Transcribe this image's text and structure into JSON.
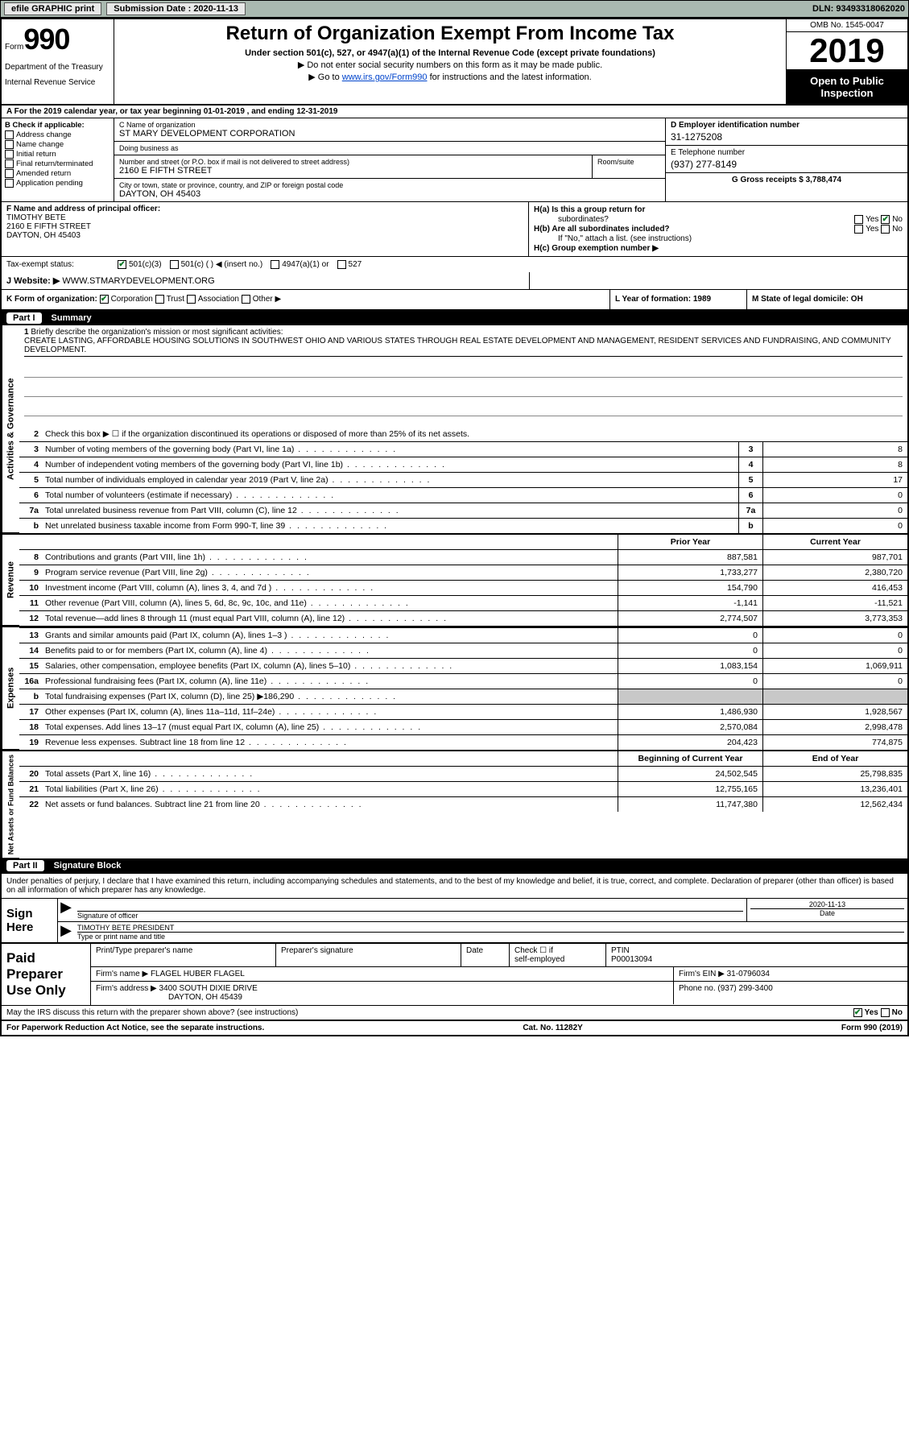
{
  "toolbar": {
    "efile_label": "efile GRAPHIC print",
    "sub_date_label": "Submission Date : 2020-11-13",
    "dln": "DLN: 93493318062020"
  },
  "header": {
    "form_prefix": "Form",
    "form_no": "990",
    "dept1": "Department of the Treasury",
    "dept2": "Internal Revenue Service",
    "title": "Return of Organization Exempt From Income Tax",
    "subtitle": "Under section 501(c), 527, or 4947(a)(1) of the Internal Revenue Code (except private foundations)",
    "note1": "Do not enter social security numbers on this form as it may be made public.",
    "note2_pre": "Go to ",
    "note2_link": "www.irs.gov/Form990",
    "note2_post": " for instructions and the latest information.",
    "omb": "OMB No. 1545-0047",
    "year": "2019",
    "inspect1": "Open to Public",
    "inspect2": "Inspection"
  },
  "row_a": "A  For the 2019 calendar year, or tax year beginning 01-01-2019     , and ending 12-31-2019",
  "col_b": {
    "hdr": "B Check if applicable:",
    "items": [
      "Address change",
      "Name change",
      "Initial return",
      "Final return/terminated",
      "Amended return",
      "Application pending"
    ]
  },
  "col_c": {
    "name_lbl": "C Name of organization",
    "name_val": "ST MARY DEVELOPMENT CORPORATION",
    "dba_lbl": "Doing business as",
    "dba_val": "",
    "addr_lbl": "Number and street (or P.O. box if mail is not delivered to street address)",
    "addr_val": "2160 E FIFTH STREET",
    "room_lbl": "Room/suite",
    "city_lbl": "City or town, state or province, country, and ZIP or foreign postal code",
    "city_val": "DAYTON, OH  45403"
  },
  "col_d": {
    "d_lbl": "D Employer identification number",
    "d_val": "31-1275208",
    "e_lbl": "E Telephone number",
    "e_val": "(937) 277-8149",
    "g_lbl": "G Gross receipts $ 3,788,474"
  },
  "col_f": {
    "lbl": "F  Name and address of principal officer:",
    "l1": "TIMOTHY BETE",
    "l2": "2160 E FIFTH STREET",
    "l3": "DAYTON, OH  45403"
  },
  "col_h": {
    "ha": "H(a)  Is this a group return for",
    "ha2": "subordinates?",
    "hb": "H(b)  Are all subordinates included?",
    "hb2": "If \"No,\" attach a list. (see instructions)",
    "hc": "H(c)  Group exemption number ▶",
    "yes": "Yes",
    "no": "No"
  },
  "tax_status": {
    "lbl": "Tax-exempt status:",
    "o1": "501(c)(3)",
    "o2": "501(c) (  ) ◀ (insert no.)",
    "o3": "4947(a)(1) or",
    "o4": "527"
  },
  "row_j": {
    "lbl": "J  Website: ▶",
    "val": "WWW.STMARYDEVELOPMENT.ORG"
  },
  "row_k": {
    "lbl": "K Form of organization:",
    "o1": "Corporation",
    "o2": "Trust",
    "o3": "Association",
    "o4": "Other ▶"
  },
  "row_l": {
    "lbl": "L Year of formation: 1989"
  },
  "row_m": {
    "lbl": "M State of legal domicile: OH"
  },
  "part1": {
    "num": "Part I",
    "title": "Summary"
  },
  "brief": {
    "num": "1",
    "lbl": "Briefly describe the organization's mission or most significant activities:",
    "txt": "CREATE LASTING, AFFORDABLE HOUSING SOLUTIONS IN SOUTHWEST OHIO AND VARIOUS STATES THROUGH REAL ESTATE DEVELOPMENT AND MANAGEMENT, RESIDENT SERVICES AND FUNDRAISING, AND COMMUNITY DEVELOPMENT."
  },
  "line2": {
    "num": "2",
    "txt": "Check this box ▶ ☐  if the organization discontinued its operations or disposed of more than 25% of its net assets."
  },
  "gov_lines": [
    {
      "n": "3",
      "t": "Number of voting members of the governing body (Part VI, line 1a)",
      "v": "8"
    },
    {
      "n": "4",
      "t": "Number of independent voting members of the governing body (Part VI, line 1b)",
      "v": "8"
    },
    {
      "n": "5",
      "t": "Total number of individuals employed in calendar year 2019 (Part V, line 2a)",
      "v": "17"
    },
    {
      "n": "6",
      "t": "Total number of volunteers (estimate if necessary)",
      "v": "0"
    },
    {
      "n": "7a",
      "t": "Total unrelated business revenue from Part VIII, column (C), line 12",
      "v": "0"
    },
    {
      "n": "b",
      "t": "Net unrelated business taxable income from Form 990-T, line 39",
      "v": "0"
    }
  ],
  "col_hdrs": {
    "py": "Prior Year",
    "cy": "Current Year",
    "bcy": "Beginning of Current Year",
    "eoy": "End of Year"
  },
  "rev_lines": [
    {
      "n": "8",
      "t": "Contributions and grants (Part VIII, line 1h)",
      "p": "887,581",
      "c": "987,701"
    },
    {
      "n": "9",
      "t": "Program service revenue (Part VIII, line 2g)",
      "p": "1,733,277",
      "c": "2,380,720"
    },
    {
      "n": "10",
      "t": "Investment income (Part VIII, column (A), lines 3, 4, and 7d )",
      "p": "154,790",
      "c": "416,453"
    },
    {
      "n": "11",
      "t": "Other revenue (Part VIII, column (A), lines 5, 6d, 8c, 9c, 10c, and 11e)",
      "p": "-1,141",
      "c": "-11,521"
    },
    {
      "n": "12",
      "t": "Total revenue—add lines 8 through 11 (must equal Part VIII, column (A), line 12)",
      "p": "2,774,507",
      "c": "3,773,353"
    }
  ],
  "exp_lines": [
    {
      "n": "13",
      "t": "Grants and similar amounts paid (Part IX, column (A), lines 1–3 )",
      "p": "0",
      "c": "0"
    },
    {
      "n": "14",
      "t": "Benefits paid to or for members (Part IX, column (A), line 4)",
      "p": "0",
      "c": "0"
    },
    {
      "n": "15",
      "t": "Salaries, other compensation, employee benefits (Part IX, column (A), lines 5–10)",
      "p": "1,083,154",
      "c": "1,069,911"
    },
    {
      "n": "16a",
      "t": "Professional fundraising fees (Part IX, column (A), line 11e)",
      "p": "0",
      "c": "0"
    },
    {
      "n": "b",
      "t": "Total fundraising expenses (Part IX, column (D), line 25) ▶186,290",
      "p": "",
      "c": "",
      "shade": true
    },
    {
      "n": "17",
      "t": "Other expenses (Part IX, column (A), lines 11a–11d, 11f–24e)",
      "p": "1,486,930",
      "c": "1,928,567"
    },
    {
      "n": "18",
      "t": "Total expenses. Add lines 13–17 (must equal Part IX, column (A), line 25)",
      "p": "2,570,084",
      "c": "2,998,478"
    },
    {
      "n": "19",
      "t": "Revenue less expenses. Subtract line 18 from line 12",
      "p": "204,423",
      "c": "774,875"
    }
  ],
  "net_lines": [
    {
      "n": "20",
      "t": "Total assets (Part X, line 16)",
      "p": "24,502,545",
      "c": "25,798,835"
    },
    {
      "n": "21",
      "t": "Total liabilities (Part X, line 26)",
      "p": "12,755,165",
      "c": "13,236,401"
    },
    {
      "n": "22",
      "t": "Net assets or fund balances. Subtract line 21 from line 20",
      "p": "11,747,380",
      "c": "12,562,434"
    }
  ],
  "vtabs": {
    "gov": "Activities & Governance",
    "rev": "Revenue",
    "exp": "Expenses",
    "net": "Net Assets or Fund Balances"
  },
  "part2": {
    "num": "Part II",
    "title": "Signature Block"
  },
  "sig_intro": "Under penalties of perjury, I declare that I have examined this return, including accompanying schedules and statements, and to the best of my knowledge and belief, it is true, correct, and complete. Declaration of preparer (other than officer) is based on all information of which preparer has any knowledge.",
  "sign": {
    "here": "Sign Here",
    "sig_lbl": "Signature of officer",
    "date_lbl": "Date",
    "date_val": "2020-11-13",
    "name": "TIMOTHY BETE  PRESIDENT",
    "name_lbl": "Type or print name and title"
  },
  "prep": {
    "lbl": "Paid Preparer Use Only",
    "c1": "Print/Type preparer's name",
    "c2": "Preparer's signature",
    "c3": "Date",
    "c4a": "Check ☐ if",
    "c4b": "self-employed",
    "c5": "PTIN",
    "c5v": "P00013094",
    "firm_lbl": "Firm's name    ▶",
    "firm": "FLAGEL HUBER FLAGEL",
    "ein_lbl": "Firm's EIN ▶",
    "ein": "31-0796034",
    "addr_lbl": "Firm's address ▶",
    "addr1": "3400 SOUTH DIXIE DRIVE",
    "addr2": "DAYTON, OH  45439",
    "phone_lbl": "Phone no.",
    "phone": "(937) 299-3400"
  },
  "discuss": {
    "txt": "May the IRS discuss this return with the preparer shown above? (see instructions)",
    "yes": "Yes",
    "no": "No"
  },
  "footer": {
    "l": "For Paperwork Reduction Act Notice, see the separate instructions.",
    "m": "Cat. No. 11282Y",
    "r": "Form 990 (2019)"
  }
}
